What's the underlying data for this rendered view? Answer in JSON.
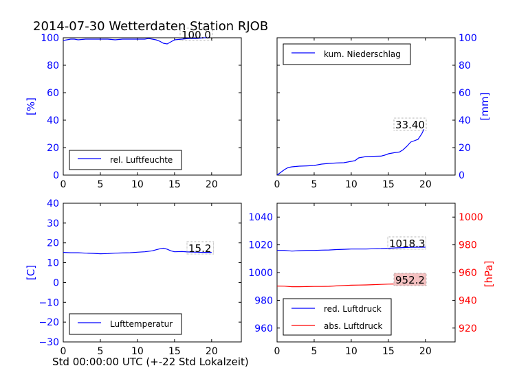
{
  "title": "2014-07-30 Wetterdaten Station RJOB",
  "xlabel": "Std 00:00:00 UTC (+-22 Std Lokalzeit)",
  "colors": {
    "primary": "#0000ff",
    "secondary": "#ff0000",
    "annot_fill": "#f4c0c0"
  },
  "chart_data": [
    {
      "type": "line",
      "name_id": "humidity",
      "xlim": [
        0,
        24
      ],
      "ylim": [
        0,
        100
      ],
      "xticks": [
        "0",
        "5",
        "10",
        "15",
        "20"
      ],
      "yticks": [
        "0",
        "20",
        "40",
        "60",
        "80",
        "100"
      ],
      "ylabel": "[%]",
      "legend": "rel. Luftfeuchte",
      "legend_loc": "lower-left",
      "annotation": "100.0",
      "series": [
        {
          "x": [
            0,
            0.5,
            1,
            1.5,
            2,
            3,
            4,
            5,
            6,
            7,
            8,
            9,
            10,
            11,
            11.5,
            12,
            12.5,
            13,
            13.5,
            14,
            14.5,
            15,
            16,
            17,
            18,
            19,
            19.7
          ],
          "y": [
            98,
            98.5,
            99,
            99,
            98.5,
            99,
            99,
            99,
            99,
            98.5,
            99,
            99,
            99,
            99,
            99.5,
            99,
            98.5,
            97.5,
            96,
            95.5,
            97,
            98.5,
            99,
            99.5,
            99.5,
            100,
            100
          ]
        }
      ]
    },
    {
      "type": "line",
      "name_id": "precip",
      "xlim": [
        0,
        24
      ],
      "ylim": [
        0,
        100
      ],
      "xticks": [
        "0",
        "5",
        "10",
        "15",
        "20"
      ],
      "yticks": [
        "0",
        "20",
        "40",
        "60",
        "80",
        "100"
      ],
      "ylabel": "[mm]",
      "legend": "kum. Niederschlag",
      "legend_loc": "upper-left",
      "annotation": "33.40",
      "series": [
        {
          "x": [
            0,
            0.5,
            1,
            1.5,
            2,
            3,
            4,
            5,
            6,
            7,
            8,
            9,
            10,
            10.5,
            11,
            12,
            13,
            14,
            14.5,
            15,
            16,
            16.5,
            17,
            17.5,
            18,
            18.5,
            19,
            19.5,
            19.8
          ],
          "y": [
            0,
            2,
            4,
            5.5,
            6,
            6.5,
            6.7,
            7,
            8,
            8.5,
            8.8,
            9,
            10,
            10.5,
            12.5,
            13.5,
            13.7,
            13.8,
            14.5,
            15.5,
            16.5,
            16.8,
            18.5,
            21,
            24,
            25,
            26,
            30,
            33.4
          ]
        }
      ]
    },
    {
      "type": "line",
      "name_id": "temperature",
      "xlim": [
        0,
        24
      ],
      "ylim": [
        -30,
        40
      ],
      "xticks": [
        "0",
        "5",
        "10",
        "15",
        "20"
      ],
      "yticks": [
        "-30",
        "-20",
        "-10",
        "0",
        "10",
        "20",
        "30",
        "40"
      ],
      "ylabel": "[C]",
      "legend": "Lufttemperatur",
      "legend_loc": "lower-left",
      "annotation": "15.2",
      "series": [
        {
          "x": [
            0,
            1,
            2,
            3,
            4,
            5,
            6,
            7,
            8,
            9,
            10,
            11,
            12,
            12.5,
            13,
            13.5,
            14,
            14.5,
            15,
            16,
            17,
            18,
            19,
            20
          ],
          "y": [
            15.2,
            15,
            15,
            14.8,
            14.7,
            14.5,
            14.6,
            14.8,
            14.9,
            15,
            15.3,
            15.5,
            16,
            16.5,
            17,
            17.3,
            16.8,
            16,
            15.5,
            15.6,
            15.4,
            15.3,
            15.2,
            15.2
          ]
        }
      ]
    },
    {
      "type": "line",
      "name_id": "pressure",
      "xlim": [
        0,
        24
      ],
      "ylim": [
        950,
        1050
      ],
      "ylim_right": [
        910,
        1010
      ],
      "xticks": [
        "0",
        "5",
        "10",
        "15",
        "20"
      ],
      "yticks": [
        "960",
        "980",
        "1000",
        "1020",
        "1040"
      ],
      "yticks_right": [
        "920",
        "940",
        "960",
        "980",
        "1000"
      ],
      "ylabel_right": "[hPa]",
      "legend_loc": "lower-left",
      "series": [
        {
          "name": "red. Luftdruck",
          "axis": "left",
          "annotation": "1018.3",
          "x": [
            0,
            1,
            2,
            3,
            4,
            5,
            6,
            7,
            8,
            9,
            10,
            11,
            12,
            13,
            14,
            15,
            16,
            17,
            18,
            19,
            20
          ],
          "y": [
            1016,
            1016,
            1015.5,
            1015.8,
            1016,
            1016,
            1016.2,
            1016.3,
            1016.6,
            1016.8,
            1017,
            1017,
            1017,
            1017.2,
            1017.3,
            1017.5,
            1017.8,
            1018,
            1018.2,
            1018.3,
            1018.3
          ]
        },
        {
          "name": "abs. Luftdruck",
          "axis": "right",
          "annotation": "952.2",
          "x": [
            0,
            1,
            2,
            3,
            4,
            5,
            6,
            7,
            8,
            9,
            10,
            11,
            12,
            13,
            14,
            15,
            16,
            17,
            18,
            19,
            20
          ],
          "y": [
            950.3,
            950.2,
            949.8,
            949.8,
            949.9,
            950,
            950,
            950.1,
            950.4,
            950.7,
            950.9,
            951,
            951.1,
            951.3,
            951.5,
            951.7,
            951.8,
            952,
            952.1,
            952.2,
            952.2
          ]
        }
      ]
    }
  ]
}
